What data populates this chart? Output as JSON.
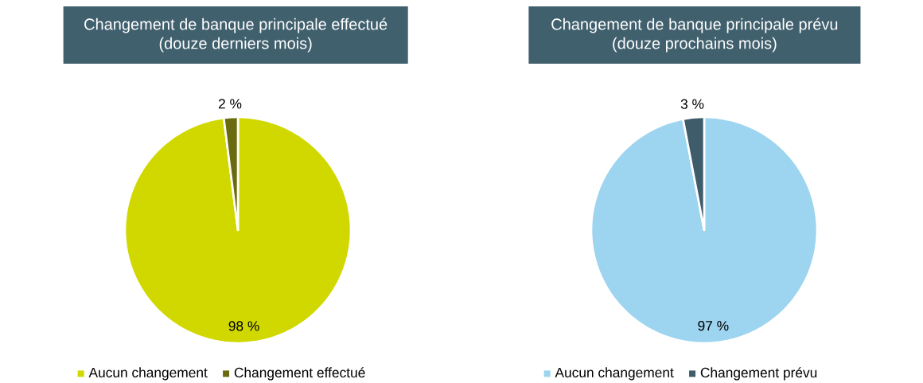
{
  "chart_data": [
    {
      "type": "pie",
      "title": "Changement de banque principale effectué",
      "subtitle": "(douze derniers mois)",
      "categories": [
        "Aucun changement",
        "Changement effectué"
      ],
      "values": [
        98,
        2
      ],
      "colors": [
        "#d0d800",
        "#6a6a10"
      ],
      "value_labels": [
        "98 %",
        "2 %"
      ],
      "legend": "bottom"
    },
    {
      "type": "pie",
      "title": "Changement de banque principale prévu",
      "subtitle": "(douze prochains mois)",
      "categories": [
        "Aucun changement",
        "Changement prévu"
      ],
      "values": [
        97,
        3
      ],
      "colors": [
        "#9dd4ef",
        "#3e5c6a"
      ],
      "value_labels": [
        "97 %",
        "3 %"
      ],
      "legend": "bottom"
    }
  ]
}
